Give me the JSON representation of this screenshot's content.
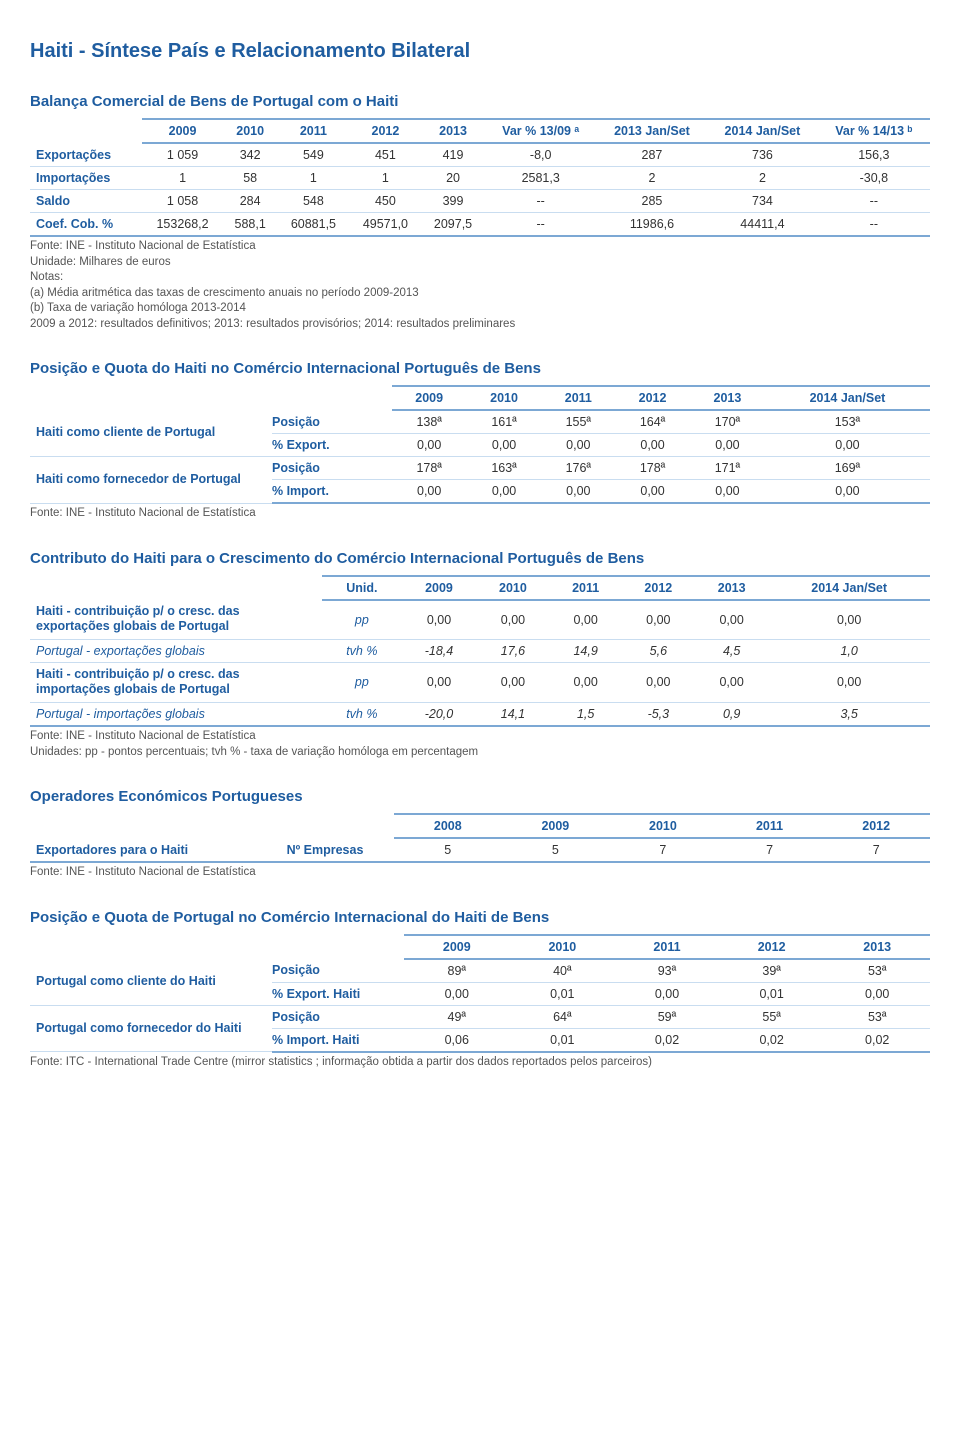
{
  "page_title": "Haiti - Síntese País e Relacionamento Bilateral",
  "t1": {
    "title": "Balança Comercial de Bens de Portugal com o Haiti",
    "headers": [
      "2009",
      "2010",
      "2011",
      "2012",
      "2013",
      "Var % 13/09 ᵃ",
      "2013 Jan/Set",
      "2014 Jan/Set",
      "Var % 14/13 ᵇ"
    ],
    "rows": [
      {
        "label": "Exportações",
        "v": [
          "1 059",
          "342",
          "549",
          "451",
          "419",
          "-8,0",
          "287",
          "736",
          "156,3"
        ]
      },
      {
        "label": "Importações",
        "v": [
          "1",
          "58",
          "1",
          "1",
          "20",
          "2581,3",
          "2",
          "2",
          "-30,8"
        ]
      },
      {
        "label": "Saldo",
        "v": [
          "1 058",
          "284",
          "548",
          "450",
          "399",
          "--",
          "285",
          "734",
          "--"
        ]
      },
      {
        "label": "Coef. Cob. %",
        "v": [
          "153268,2",
          "588,1",
          "60881,5",
          "49571,0",
          "2097,5",
          "--",
          "11986,6",
          "44411,4",
          "--"
        ]
      }
    ],
    "notes": [
      "Fonte: INE - Instituto Nacional de Estatística",
      "Unidade: Milhares de euros",
      "Notas:",
      "(a) Média aritmética das taxas de crescimento anuais no período 2009-2013",
      "(b) Taxa de variação homóloga 2013-2014",
      "2009 a 2012: resultados definitivos; 2013: resultados provisórios; 2014: resultados preliminares"
    ]
  },
  "t2": {
    "title": "Posição e Quota do Haiti no Comércio Internacional Português de Bens",
    "headers": [
      "2009",
      "2010",
      "2011",
      "2012",
      "2013",
      "2014 Jan/Set"
    ],
    "groups": [
      {
        "label": "Haiti como cliente de Portugal",
        "rows": [
          {
            "sub": "Posição",
            "v": [
              "138ª",
              "161ª",
              "155ª",
              "164ª",
              "170ª",
              "153ª"
            ]
          },
          {
            "sub": "% Export.",
            "v": [
              "0,00",
              "0,00",
              "0,00",
              "0,00",
              "0,00",
              "0,00"
            ]
          }
        ]
      },
      {
        "label": "Haiti como fornecedor de Portugal",
        "rows": [
          {
            "sub": "Posição",
            "v": [
              "178ª",
              "163ª",
              "176ª",
              "178ª",
              "171ª",
              "169ª"
            ]
          },
          {
            "sub": "% Import.",
            "v": [
              "0,00",
              "0,00",
              "0,00",
              "0,00",
              "0,00",
              "0,00"
            ]
          }
        ]
      }
    ],
    "notes": [
      "Fonte: INE - Instituto Nacional de Estatística"
    ]
  },
  "t3": {
    "title": "Contributo do Haiti para o Crescimento do Comércio Internacional Português de Bens",
    "headers": [
      "Unid.",
      "2009",
      "2010",
      "2011",
      "2012",
      "2013",
      "2014 Jan/Set"
    ],
    "rows": [
      {
        "label": "Haiti - contribuição p/ o cresc. das exportações globais de Portugal",
        "v": [
          "pp",
          "0,00",
          "0,00",
          "0,00",
          "0,00",
          "0,00",
          "0,00"
        ],
        "italic": false
      },
      {
        "label": "Portugal - exportações globais",
        "v": [
          "tvh %",
          "-18,4",
          "17,6",
          "14,9",
          "5,6",
          "4,5",
          "1,0"
        ],
        "italic": true
      },
      {
        "label": "Haiti - contribuição p/ o cresc. das importações globais de Portugal",
        "v": [
          "pp",
          "0,00",
          "0,00",
          "0,00",
          "0,00",
          "0,00",
          "0,00"
        ],
        "italic": false
      },
      {
        "label": "Portugal - importações globais",
        "v": [
          "tvh %",
          "-20,0",
          "14,1",
          "1,5",
          "-5,3",
          "0,9",
          "3,5"
        ],
        "italic": true
      }
    ],
    "notes": [
      "Fonte: INE - Instituto Nacional de Estatística",
      "Unidades: pp - pontos percentuais; tvh % - taxa de variação homóloga em percentagem"
    ]
  },
  "t4": {
    "title": "Operadores Económicos Portugueses",
    "headers": [
      "2008",
      "2009",
      "2010",
      "2011",
      "2012"
    ],
    "rows": [
      {
        "label": "Exportadores para o Haiti",
        "sub": "Nº Empresas",
        "v": [
          "5",
          "5",
          "7",
          "7",
          "7"
        ]
      }
    ],
    "notes": [
      "Fonte: INE - Instituto Nacional de Estatística"
    ]
  },
  "t5": {
    "title": "Posição e Quota de Portugal no Comércio Internacional do Haiti de Bens",
    "headers": [
      "2009",
      "2010",
      "2011",
      "2012",
      "2013"
    ],
    "groups": [
      {
        "label": "Portugal como cliente do Haiti",
        "rows": [
          {
            "sub": "Posição",
            "v": [
              "89ª",
              "40ª",
              "93ª",
              "39ª",
              "53ª"
            ]
          },
          {
            "sub": "% Export. Haiti",
            "v": [
              "0,00",
              "0,01",
              "0,00",
              "0,01",
              "0,00"
            ]
          }
        ]
      },
      {
        "label": "Portugal como fornecedor do Haiti",
        "rows": [
          {
            "sub": "Posição",
            "v": [
              "49ª",
              "64ª",
              "59ª",
              "55ª",
              "53ª"
            ]
          },
          {
            "sub": "% Import. Haiti",
            "v": [
              "0,06",
              "0,01",
              "0,02",
              "0,02",
              "0,02"
            ]
          }
        ]
      }
    ],
    "notes": [
      "Fonte: ITC - International Trade Centre (mirror statistics ; informação obtida a partir dos dados reportados pelos parceiros)"
    ]
  }
}
